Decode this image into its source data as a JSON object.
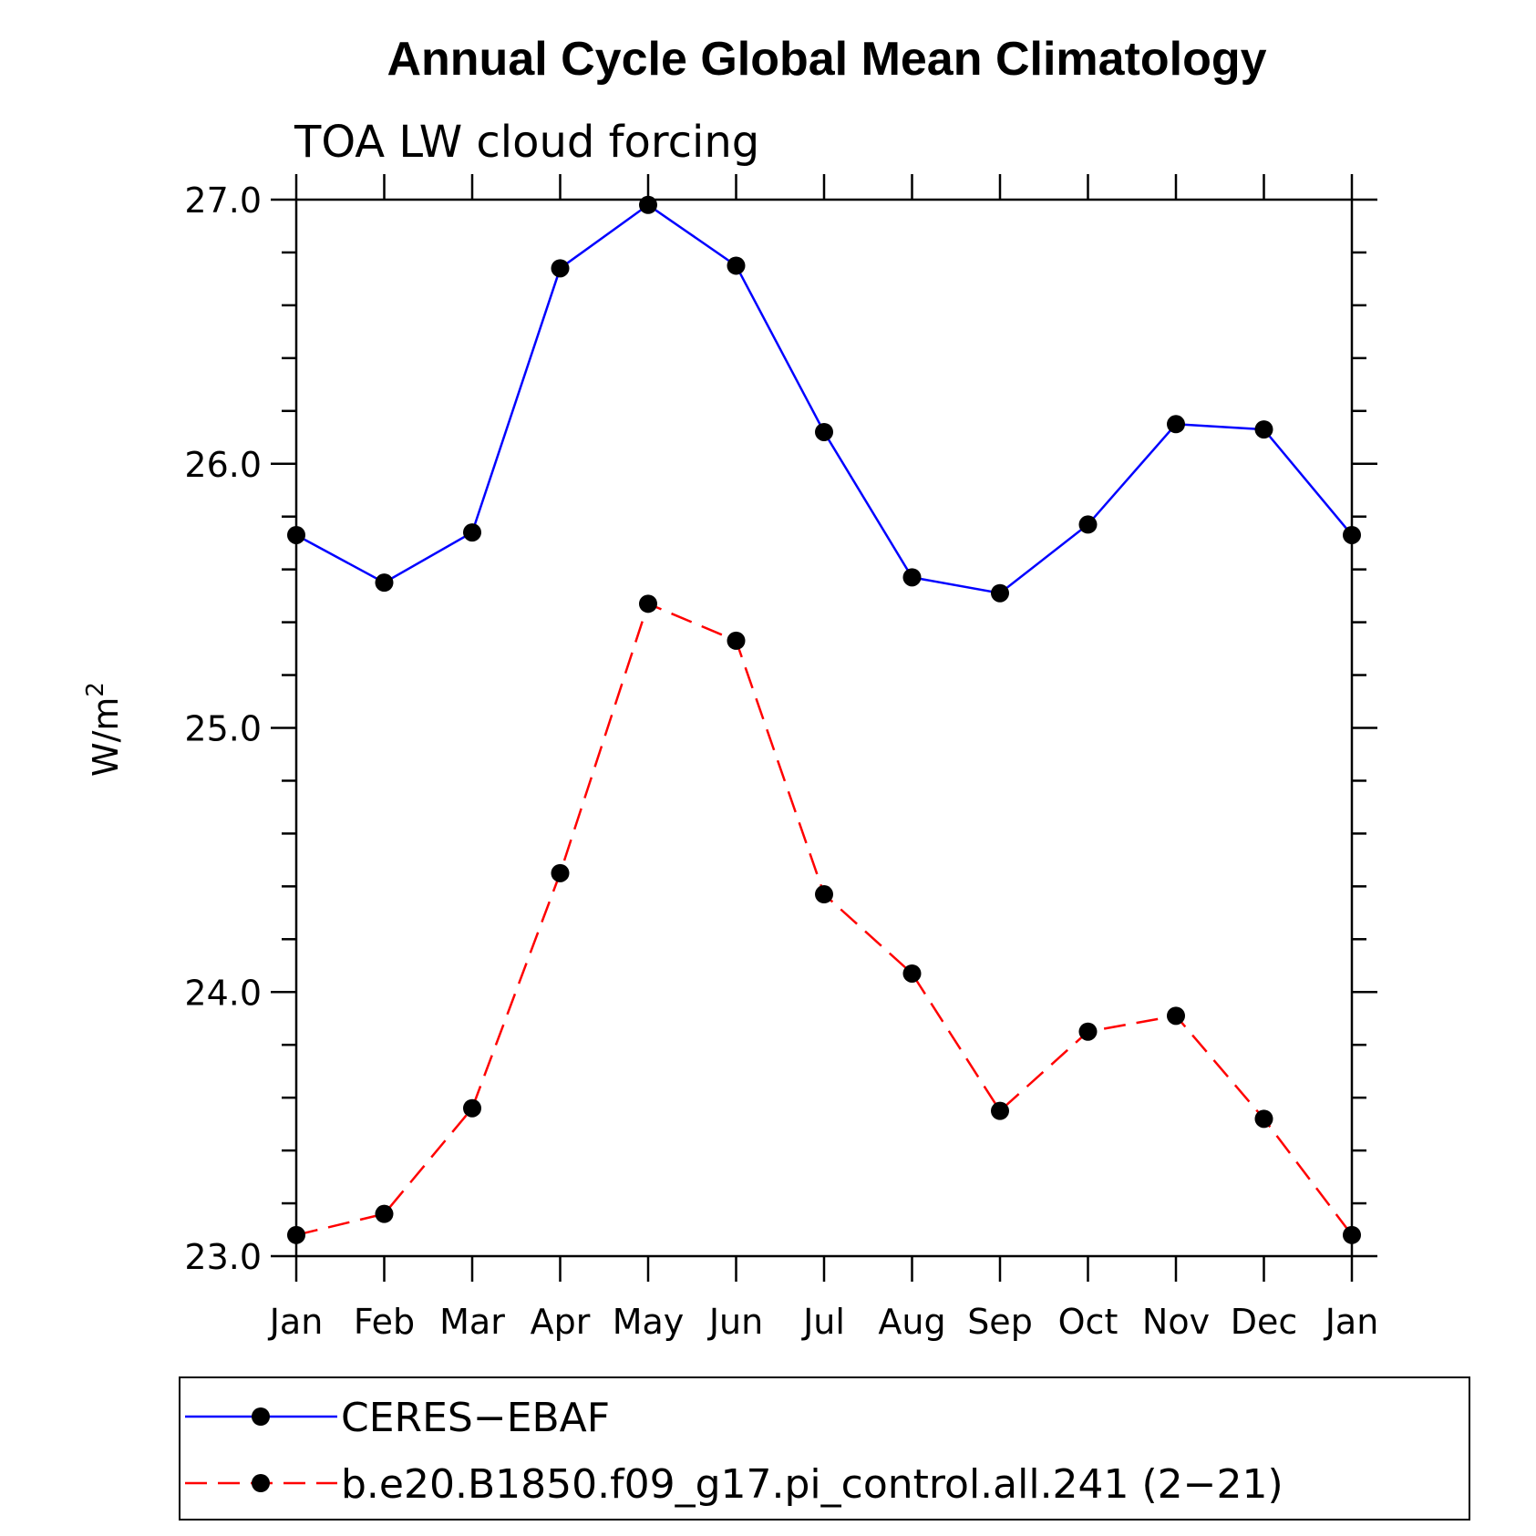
{
  "chart_data": {
    "type": "line",
    "title": "Annual Cycle Global Mean Climatology",
    "subtitle": "TOA LW cloud forcing",
    "ylabel": "W/m",
    "ylabel_sup": "2",
    "ylim": [
      23.0,
      27.0
    ],
    "yticks": [
      "23.0",
      "24.0",
      "25.0",
      "26.0",
      "27.0"
    ],
    "categories": [
      "Jan",
      "Feb",
      "Mar",
      "Apr",
      "May",
      "Jun",
      "Jul",
      "Aug",
      "Sep",
      "Oct",
      "Nov",
      "Dec",
      "Jan"
    ],
    "series": [
      {
        "name": "CERES−EBAF",
        "color": "#0000ff",
        "dash": "solid",
        "values": [
          25.73,
          25.55,
          25.74,
          26.74,
          26.98,
          26.75,
          26.12,
          25.57,
          25.51,
          25.77,
          26.15,
          26.13,
          25.73
        ]
      },
      {
        "name": "b.e20.B1850.f09_g17.pi_control.all.241 (2−21)",
        "color": "#ff0000",
        "dash": "dashed",
        "values": [
          23.08,
          23.16,
          23.56,
          24.45,
          25.47,
          25.33,
          24.37,
          24.07,
          23.55,
          23.85,
          23.91,
          23.52,
          23.08
        ]
      }
    ],
    "marker_color": "#000000",
    "grid": false,
    "legend_position": "bottom"
  }
}
